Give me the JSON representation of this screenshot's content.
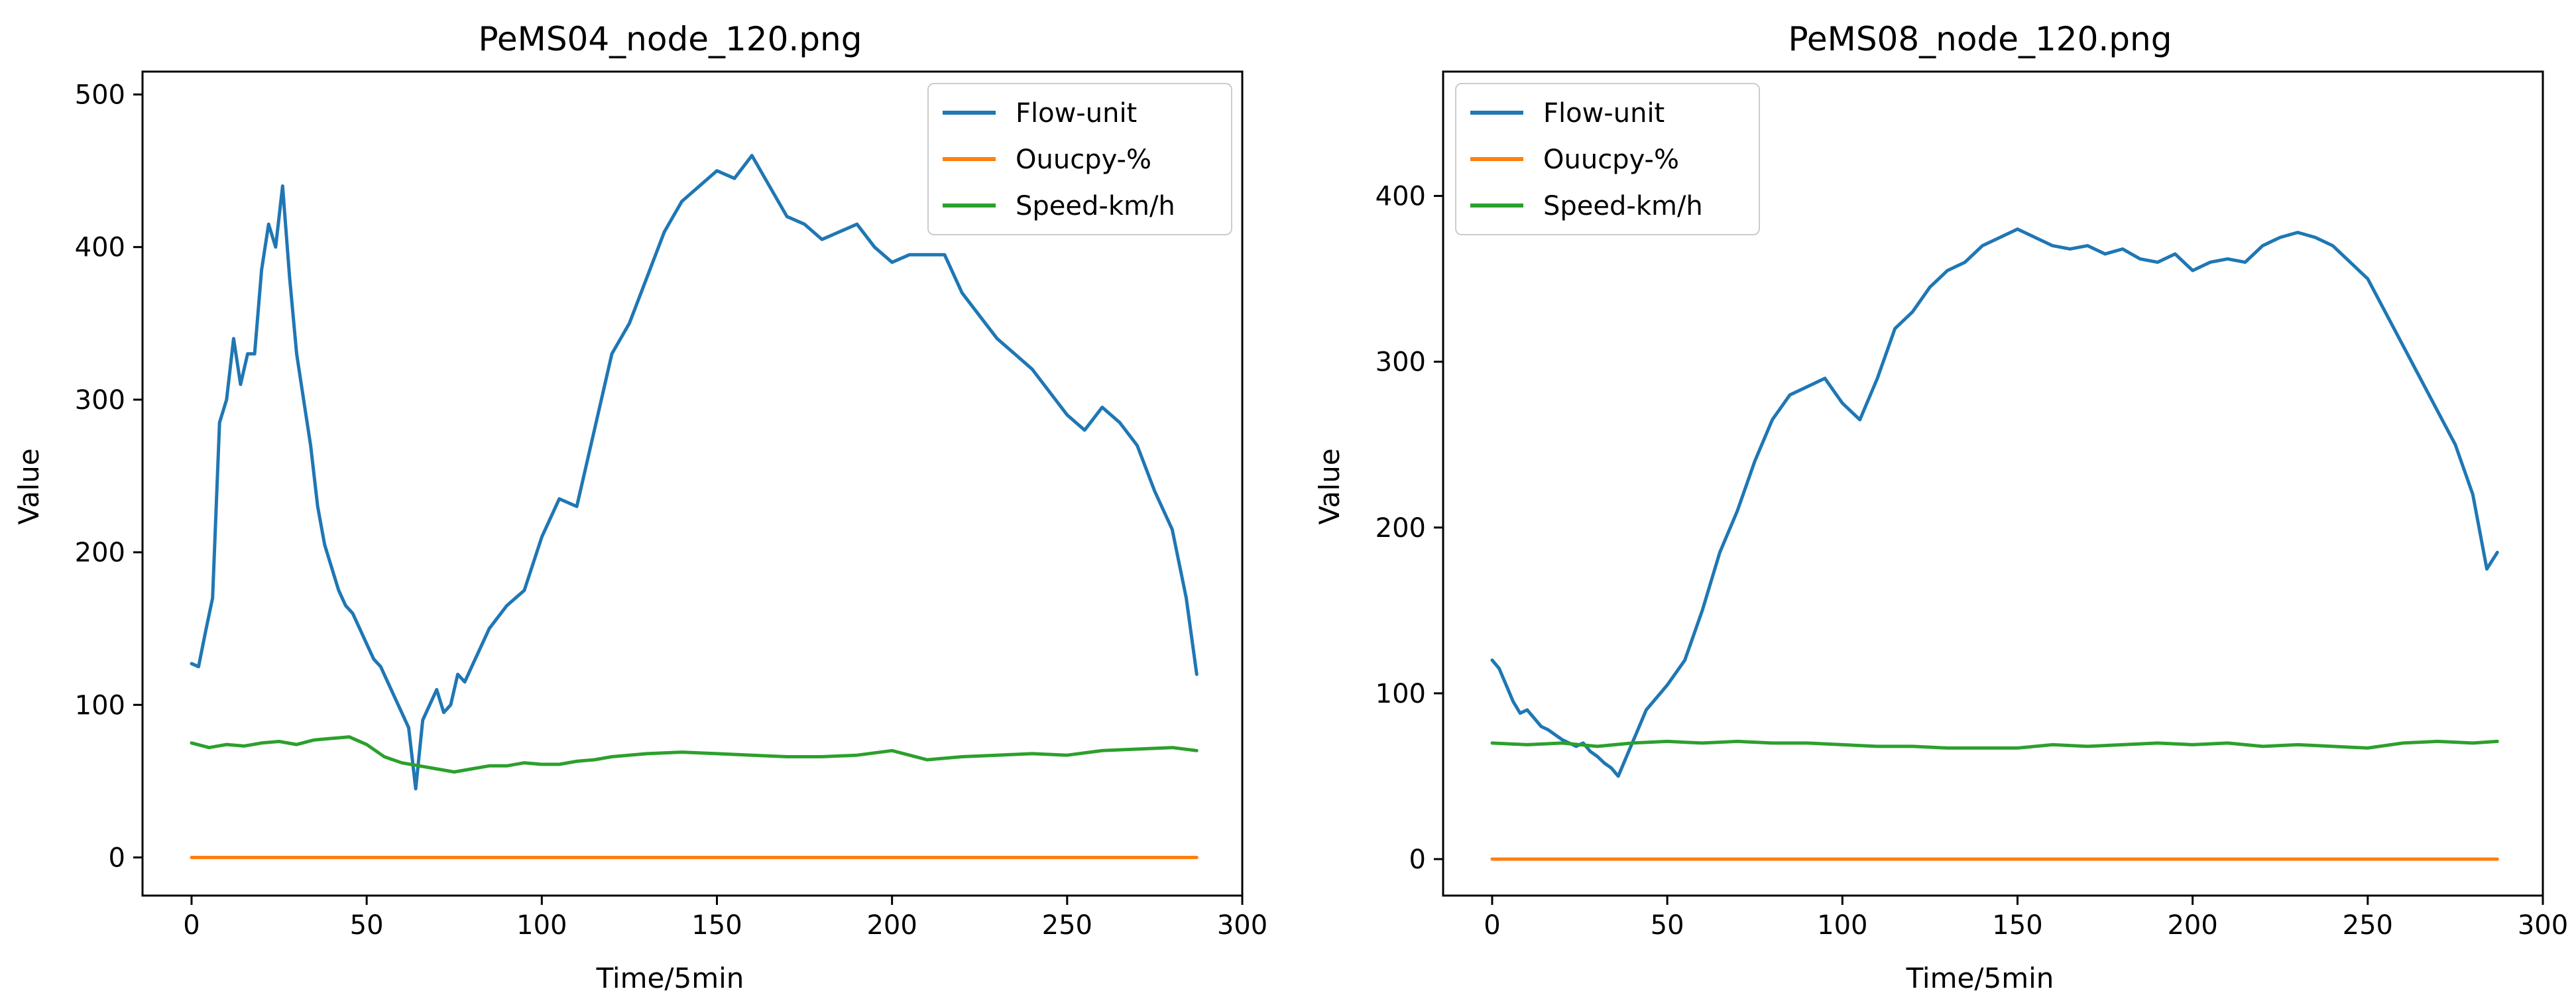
{
  "figure": {
    "background": "#ffffff"
  },
  "legend_entries": [
    {
      "label": "Flow-unit",
      "color": "#1f77b4"
    },
    {
      "label": "Ouucpy-%",
      "color": "#ff7f0e"
    },
    {
      "label": "Speed-km/h",
      "color": "#2ca02c"
    }
  ],
  "chart_data": [
    {
      "type": "line",
      "title": "PeMS04_node_120.png",
      "xlabel": "Time/5min",
      "ylabel": "Value",
      "xlim": [
        -14,
        300
      ],
      "ylim": [
        -25,
        515
      ],
      "xticks": [
        0,
        50,
        100,
        150,
        200,
        250,
        300
      ],
      "yticks": [
        0,
        100,
        200,
        300,
        400,
        500
      ],
      "grid": false,
      "legend_position": "top-right",
      "series": [
        {
          "name": "Flow-unit",
          "color": "#1f77b4",
          "x": [
            0,
            2,
            4,
            6,
            8,
            10,
            12,
            14,
            16,
            18,
            20,
            22,
            24,
            26,
            28,
            30,
            32,
            34,
            36,
            38,
            40,
            42,
            44,
            46,
            48,
            50,
            52,
            54,
            56,
            58,
            60,
            62,
            64,
            66,
            68,
            70,
            72,
            74,
            76,
            78,
            80,
            85,
            90,
            95,
            100,
            105,
            110,
            115,
            120,
            125,
            130,
            135,
            140,
            145,
            150,
            155,
            160,
            165,
            170,
            175,
            180,
            185,
            190,
            195,
            200,
            205,
            210,
            215,
            220,
            225,
            230,
            235,
            240,
            245,
            250,
            255,
            260,
            265,
            270,
            275,
            280,
            284,
            287
          ],
          "y": [
            127,
            125,
            148,
            170,
            285,
            300,
            340,
            310,
            330,
            330,
            385,
            415,
            400,
            440,
            380,
            330,
            300,
            270,
            230,
            205,
            190,
            175,
            165,
            160,
            150,
            140,
            130,
            125,
            115,
            105,
            95,
            85,
            45,
            90,
            100,
            110,
            95,
            100,
            120,
            115,
            125,
            150,
            165,
            175,
            210,
            235,
            230,
            280,
            330,
            350,
            380,
            410,
            430,
            440,
            450,
            445,
            460,
            440,
            420,
            415,
            405,
            410,
            415,
            400,
            390,
            395,
            395,
            395,
            370,
            355,
            340,
            330,
            320,
            305,
            290,
            280,
            295,
            285,
            270,
            240,
            215,
            170,
            120
          ]
        },
        {
          "name": "Ouucpy-%",
          "color": "#ff7f0e",
          "x": [
            0,
            287
          ],
          "y": [
            0,
            0
          ]
        },
        {
          "name": "Speed-km/h",
          "color": "#2ca02c",
          "x": [
            0,
            5,
            10,
            15,
            20,
            25,
            30,
            35,
            40,
            45,
            50,
            55,
            60,
            65,
            70,
            75,
            80,
            85,
            90,
            95,
            100,
            105,
            110,
            115,
            120,
            130,
            140,
            150,
            160,
            170,
            180,
            190,
            200,
            210,
            220,
            230,
            240,
            250,
            260,
            270,
            280,
            287
          ],
          "y": [
            75,
            72,
            74,
            73,
            75,
            76,
            74,
            77,
            78,
            79,
            74,
            66,
            62,
            60,
            58,
            56,
            58,
            60,
            60,
            62,
            61,
            61,
            63,
            64,
            66,
            68,
            69,
            68,
            67,
            66,
            66,
            67,
            70,
            64,
            66,
            67,
            68,
            67,
            70,
            71,
            72,
            70
          ]
        }
      ]
    },
    {
      "type": "line",
      "title": "PeMS08_node_120.png",
      "xlabel": "Time/5min",
      "ylabel": "Value",
      "xlim": [
        -14,
        300
      ],
      "ylim": [
        -22,
        475
      ],
      "xticks": [
        0,
        50,
        100,
        150,
        200,
        250,
        300
      ],
      "yticks": [
        0,
        100,
        200,
        300,
        400
      ],
      "grid": false,
      "legend_position": "top-left",
      "series": [
        {
          "name": "Flow-unit",
          "color": "#1f77b4",
          "x": [
            0,
            2,
            4,
            6,
            8,
            10,
            12,
            14,
            16,
            18,
            20,
            22,
            24,
            26,
            28,
            30,
            32,
            34,
            36,
            38,
            40,
            42,
            44,
            46,
            48,
            50,
            55,
            60,
            65,
            70,
            75,
            80,
            85,
            90,
            95,
            100,
            105,
            110,
            115,
            120,
            125,
            130,
            135,
            140,
            145,
            150,
            155,
            160,
            165,
            170,
            175,
            180,
            185,
            190,
            195,
            200,
            205,
            210,
            215,
            220,
            225,
            230,
            235,
            240,
            245,
            250,
            255,
            260,
            265,
            270,
            275,
            280,
            284,
            287
          ],
          "y": [
            120,
            115,
            105,
            95,
            88,
            90,
            85,
            80,
            78,
            75,
            72,
            70,
            68,
            70,
            65,
            62,
            58,
            55,
            50,
            60,
            70,
            80,
            90,
            95,
            100,
            105,
            120,
            150,
            185,
            210,
            240,
            265,
            280,
            285,
            290,
            275,
            265,
            290,
            320,
            330,
            345,
            355,
            360,
            370,
            375,
            380,
            375,
            370,
            368,
            370,
            365,
            368,
            362,
            360,
            365,
            355,
            360,
            362,
            360,
            370,
            375,
            378,
            375,
            370,
            360,
            350,
            330,
            310,
            290,
            270,
            250,
            220,
            175,
            185
          ]
        },
        {
          "name": "Ouucpy-%",
          "color": "#ff7f0e",
          "x": [
            0,
            287
          ],
          "y": [
            0,
            0
          ]
        },
        {
          "name": "Speed-km/h",
          "color": "#2ca02c",
          "x": [
            0,
            10,
            20,
            30,
            40,
            50,
            60,
            70,
            80,
            90,
            100,
            110,
            120,
            130,
            140,
            150,
            160,
            170,
            180,
            190,
            200,
            210,
            220,
            230,
            240,
            250,
            260,
            270,
            280,
            287
          ],
          "y": [
            70,
            69,
            70,
            68,
            70,
            71,
            70,
            71,
            70,
            70,
            69,
            68,
            68,
            67,
            67,
            67,
            69,
            68,
            69,
            70,
            69,
            70,
            68,
            69,
            68,
            67,
            70,
            71,
            70,
            71
          ]
        }
      ]
    }
  ]
}
